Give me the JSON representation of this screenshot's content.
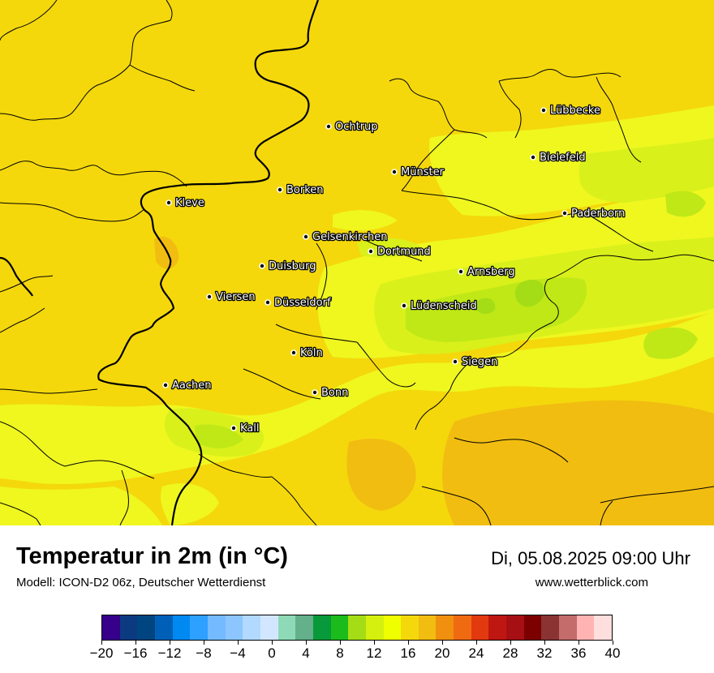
{
  "map": {
    "cities": [
      {
        "name": "Lübbecke"
      },
      {
        "name": "Ochtrup"
      },
      {
        "name": "Bielefeld"
      },
      {
        "name": "Münster"
      },
      {
        "name": "Borken"
      },
      {
        "name": "Kleve"
      },
      {
        "name": "Paderborn"
      },
      {
        "name": "Gelsenkirchen"
      },
      {
        "name": "Dortmund"
      },
      {
        "name": "Duisburg"
      },
      {
        "name": "Arnsberg"
      },
      {
        "name": "Viersen"
      },
      {
        "name": "Düsseldorf"
      },
      {
        "name": "Lüdenscheid"
      },
      {
        "name": "Köln"
      },
      {
        "name": "Siegen"
      },
      {
        "name": "Aachen"
      },
      {
        "name": "Bonn"
      },
      {
        "name": "Kall"
      }
    ],
    "colors": {
      "base": "#f4d80c",
      "warm": "#f1bd11",
      "yellow": "#eff71f",
      "yellow_green": "#d9f01b",
      "light_green": "#bfe816",
      "green": "#a4dd16"
    }
  },
  "footer": {
    "title": "Temperatur in 2m (in °C)",
    "model": "Modell: ICON-D2 06z, Deutscher Wetterdienst",
    "datetime": "Di, 05.08.2025 09:00 Uhr",
    "website": "www.wetterblick.com"
  },
  "legend": {
    "min": -20,
    "max": 40,
    "tick_labels": [
      "−20",
      "−16",
      "−12",
      "−8",
      "−4",
      "0",
      "4",
      "8",
      "12",
      "16",
      "20",
      "24",
      "28",
      "32",
      "36",
      "40"
    ],
    "colors": [
      "#36008b",
      "#0c3a80",
      "#00457f",
      "#0060b8",
      "#0089f0",
      "#2ea0ff",
      "#74baff",
      "#8dc6ff",
      "#b2d9ff",
      "#d2e7ff",
      "#8ed9b7",
      "#63b08a",
      "#089a3a",
      "#1bbb1b",
      "#a4dd16",
      "#d5f00f",
      "#f0ff00",
      "#f4d80c",
      "#f2bd11",
      "#f0900e",
      "#f06a12",
      "#e3390e",
      "#be1712",
      "#a60f13",
      "#7c0000",
      "#8a3333",
      "#c46b6b",
      "#ffb3b3",
      "#ffdede"
    ]
  }
}
